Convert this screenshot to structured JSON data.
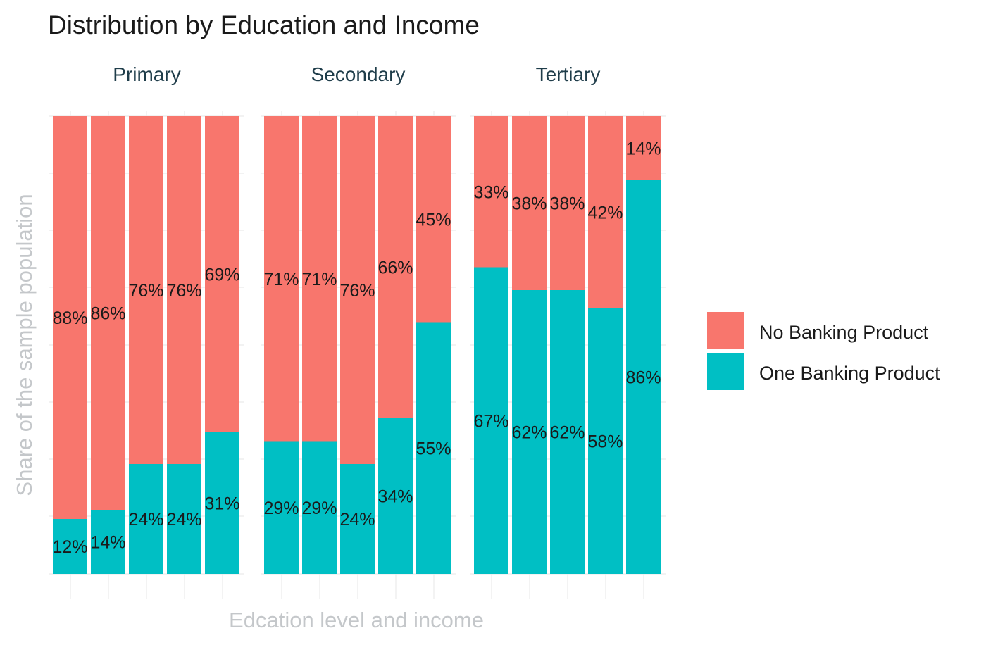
{
  "chart_data": {
    "type": "bar",
    "stacked": true,
    "percent_stacked": true,
    "title": "Distribution by Education and Income",
    "xlabel": "Edcation level and income",
    "ylabel": "Share of the sample population",
    "ylim": [
      0,
      1
    ],
    "grid": true,
    "legend_position": "right",
    "facets": [
      {
        "name": "Primary",
        "no_banking": [
          0.88,
          0.86,
          0.76,
          0.76,
          0.69
        ],
        "no_banking_labels": [
          "88%",
          "86%",
          "76%",
          "76%",
          "69%"
        ],
        "one_banking": [
          0.12,
          0.14,
          0.24,
          0.24,
          0.31
        ],
        "one_banking_labels": [
          "12%",
          "14%",
          "24%",
          "24%",
          "31%"
        ]
      },
      {
        "name": "Secondary",
        "no_banking": [
          0.71,
          0.71,
          0.76,
          0.66,
          0.45
        ],
        "no_banking_labels": [
          "71%",
          "71%",
          "76%",
          "66%",
          "45%"
        ],
        "one_banking": [
          0.29,
          0.29,
          0.24,
          0.34,
          0.55
        ],
        "one_banking_labels": [
          "29%",
          "29%",
          "24%",
          "34%",
          "55%"
        ]
      },
      {
        "name": "Tertiary",
        "no_banking": [
          0.33,
          0.38,
          0.38,
          0.42,
          0.14
        ],
        "no_banking_labels": [
          "33%",
          "38%",
          "38%",
          "42%",
          "14%"
        ],
        "one_banking": [
          0.67,
          0.62,
          0.62,
          0.58,
          0.86
        ],
        "one_banking_labels": [
          "67%",
          "62%",
          "62%",
          "58%",
          "86%"
        ]
      }
    ],
    "series": [
      {
        "name": "No Banking Product",
        "color": "#F8766D"
      },
      {
        "name": "One Banking Product",
        "color": "#00BFC4"
      }
    ]
  }
}
